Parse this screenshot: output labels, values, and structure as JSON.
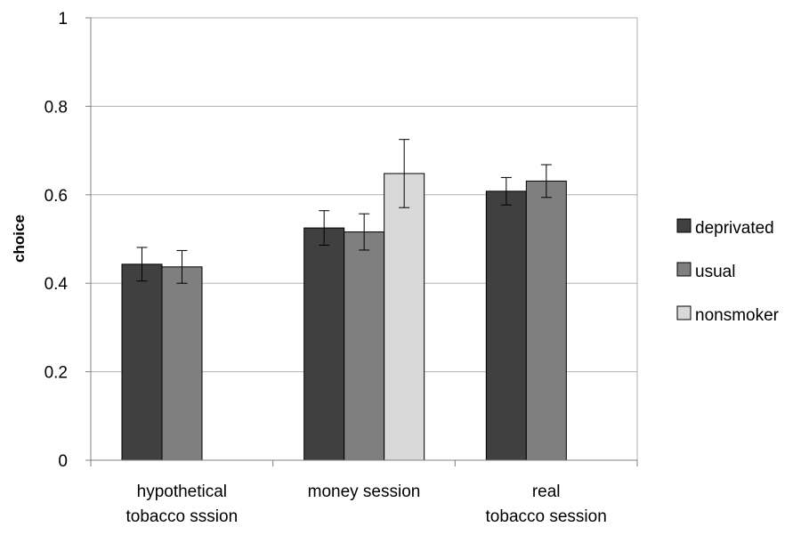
{
  "chart_data": {
    "type": "bar",
    "categories": [
      [
        "hypothetical",
        "tobacco sssion"
      ],
      [
        "money session"
      ],
      [
        "real",
        "tobacco session"
      ]
    ],
    "series": [
      {
        "name": "deprivated",
        "color": "#404040",
        "values": [
          0.443,
          0.525,
          0.608
        ],
        "err": [
          0.038,
          0.039,
          0.031
        ]
      },
      {
        "name": "usual",
        "color": "#7f7f7f",
        "values": [
          0.437,
          0.516,
          0.631
        ],
        "err": [
          0.037,
          0.041,
          0.037
        ]
      },
      {
        "name": "nonsmoker",
        "color": "#d9d9d9",
        "values": [
          null,
          0.648,
          null
        ],
        "err": [
          null,
          0.077,
          null
        ]
      }
    ],
    "title": "",
    "xlabel": "",
    "ylabel": "choice",
    "ylim": [
      0,
      1
    ],
    "yticks": [
      "0",
      "0.2",
      "0.4",
      "0.6",
      "0.8",
      "1"
    ],
    "grid": true,
    "legend_position": "right"
  }
}
